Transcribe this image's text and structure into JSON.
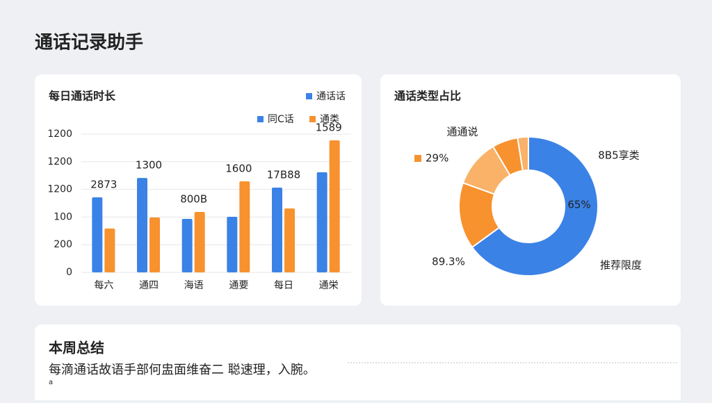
{
  "title": "通话记录助手",
  "chart_data": [
    {
      "type": "bar",
      "title": "每日通话时长",
      "legend_extra": "通话话",
      "categories": [
        "每六",
        "通四",
        "海语",
        "通要",
        "每日",
        "通栄"
      ],
      "series": [
        {
          "name": "同C话",
          "color": "#3b82e6",
          "values": [
            543,
            683,
            387,
            402,
            613,
            724
          ]
        },
        {
          "name": "通类",
          "color": "#f7922f",
          "values": [
            317,
            397,
            437,
            658,
            462,
            955
          ]
        }
      ],
      "annotations": [
        "2873",
        "1300",
        "800B",
        "1600",
        "17Β88",
        "1589"
      ],
      "ylim": [
        0,
        1000
      ],
      "yticks": [
        0,
        200,
        {
          "value": 400,
          "label": "100"
        },
        {
          "value": 600,
          "label": "1200"
        },
        {
          "value": 800,
          "label": "1200"
        },
        {
          "value": 1000,
          "label": "1200"
        }
      ],
      "grid": true
    },
    {
      "type": "pie",
      "title": "通话类型占比",
      "donut": true,
      "values": [
        65,
        15.5,
        11,
        6,
        2.5
      ],
      "colors": [
        "#3b82e6",
        "#f7922f",
        "#f9b267",
        "#f7922f",
        "#f9b267"
      ],
      "annotations": [
        "通通说",
        "29%",
        "8B5享类",
        "65%",
        "89.3%",
        "推荐限度"
      ]
    }
  ],
  "summary": {
    "title": "本周总结",
    "text": "每滴通话故语手部何盅面维奋二 聪速理，入腕。",
    "note": "a"
  }
}
